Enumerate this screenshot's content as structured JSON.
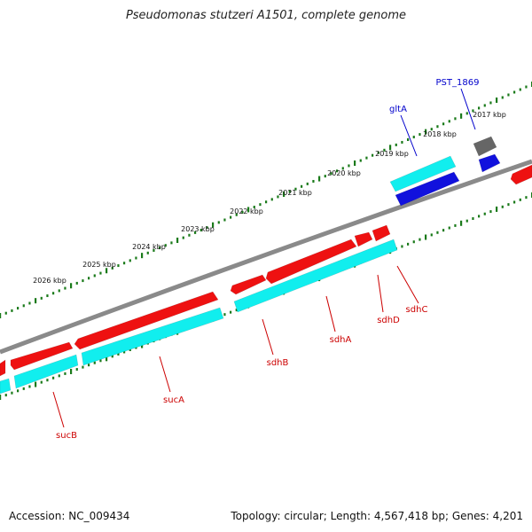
{
  "title": "Pseudomonas stutzeri A1501, complete genome",
  "footer": {
    "accession": "Accession: NC_009434",
    "summary": "Topology: circular; Length: 4,567,418 bp; Genes: 4,201"
  },
  "colors": {
    "forward_red": "#ee1111",
    "cyan": "#11eeee",
    "blue": "#1111dd",
    "grey": "#666666",
    "backbone": "#8a8a8a",
    "tick_green": "#1a7a1a",
    "label_red": "#cc0000",
    "label_blue": "#0000cc"
  },
  "tick_labels": [
    {
      "text": "2017 kbp"
    },
    {
      "text": "2018 kbp"
    },
    {
      "text": "2019 kbp"
    },
    {
      "text": "2020 kbp"
    },
    {
      "text": "2021 kbp"
    },
    {
      "text": "2022 kbp"
    },
    {
      "text": "2023 kbp"
    },
    {
      "text": "2024 kbp"
    },
    {
      "text": "2025 kbp"
    },
    {
      "text": "2026 kbp"
    }
  ],
  "gene_labels": [
    {
      "text": "PST_1869",
      "color": "blue"
    },
    {
      "text": "gltA",
      "color": "blue"
    },
    {
      "text": "sdhC",
      "color": "red"
    },
    {
      "text": "sdhD",
      "color": "red"
    },
    {
      "text": "sdhA",
      "color": "red"
    },
    {
      "text": "sdhB",
      "color": "red"
    },
    {
      "text": "sucA",
      "color": "red"
    },
    {
      "text": "sucB",
      "color": "red"
    }
  ]
}
